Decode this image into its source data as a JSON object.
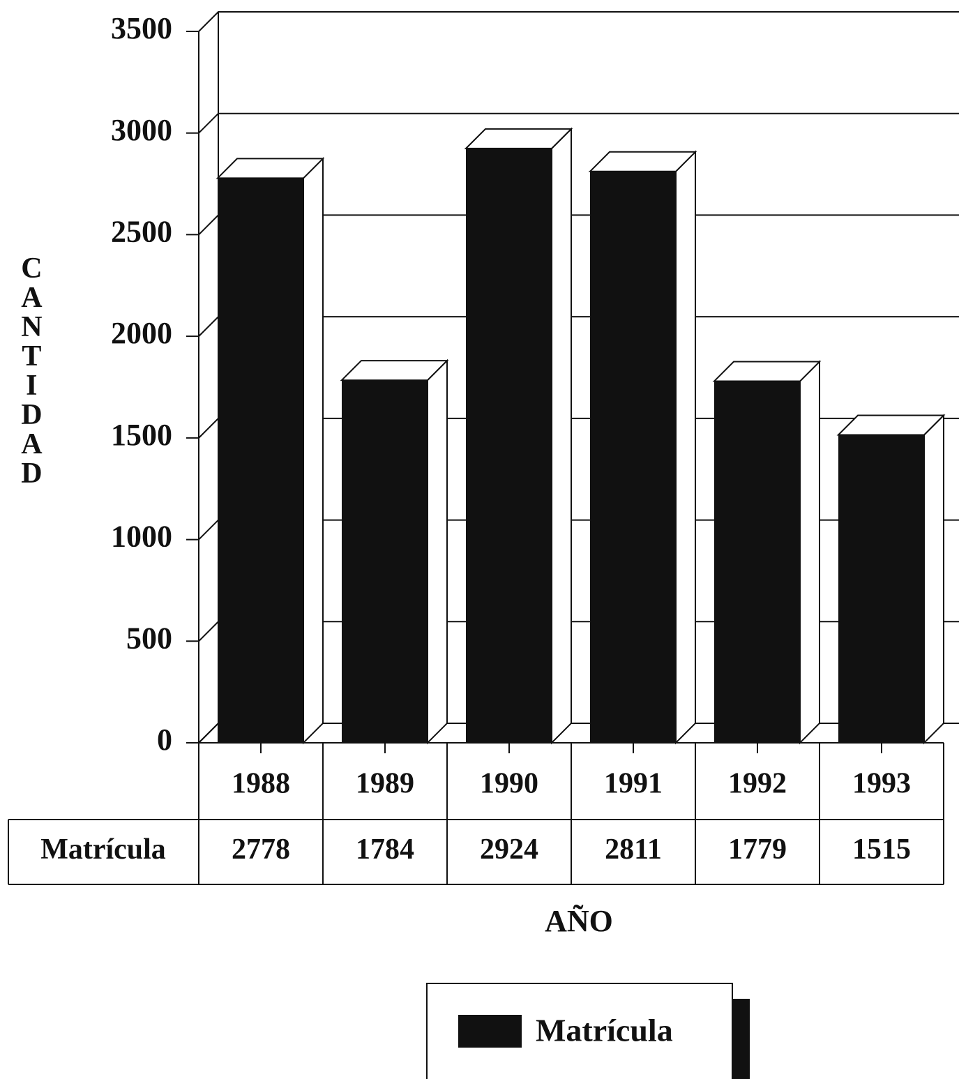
{
  "chart_data": {
    "type": "bar",
    "y_label": "CANTIDAD",
    "x_label": "AÑO",
    "categories": [
      "1988",
      "1989",
      "1990",
      "1991",
      "1992",
      "1993"
    ],
    "series": [
      {
        "name": "Matrícula",
        "color": "#111111",
        "values": [
          2778,
          1784,
          2924,
          2811,
          1779,
          1515
        ]
      }
    ],
    "ylim": [
      0,
      3500
    ],
    "yticks": [
      0,
      500,
      1000,
      1500,
      2000,
      2500,
      3000,
      3500
    ],
    "grid": true,
    "legend": "bottom"
  }
}
